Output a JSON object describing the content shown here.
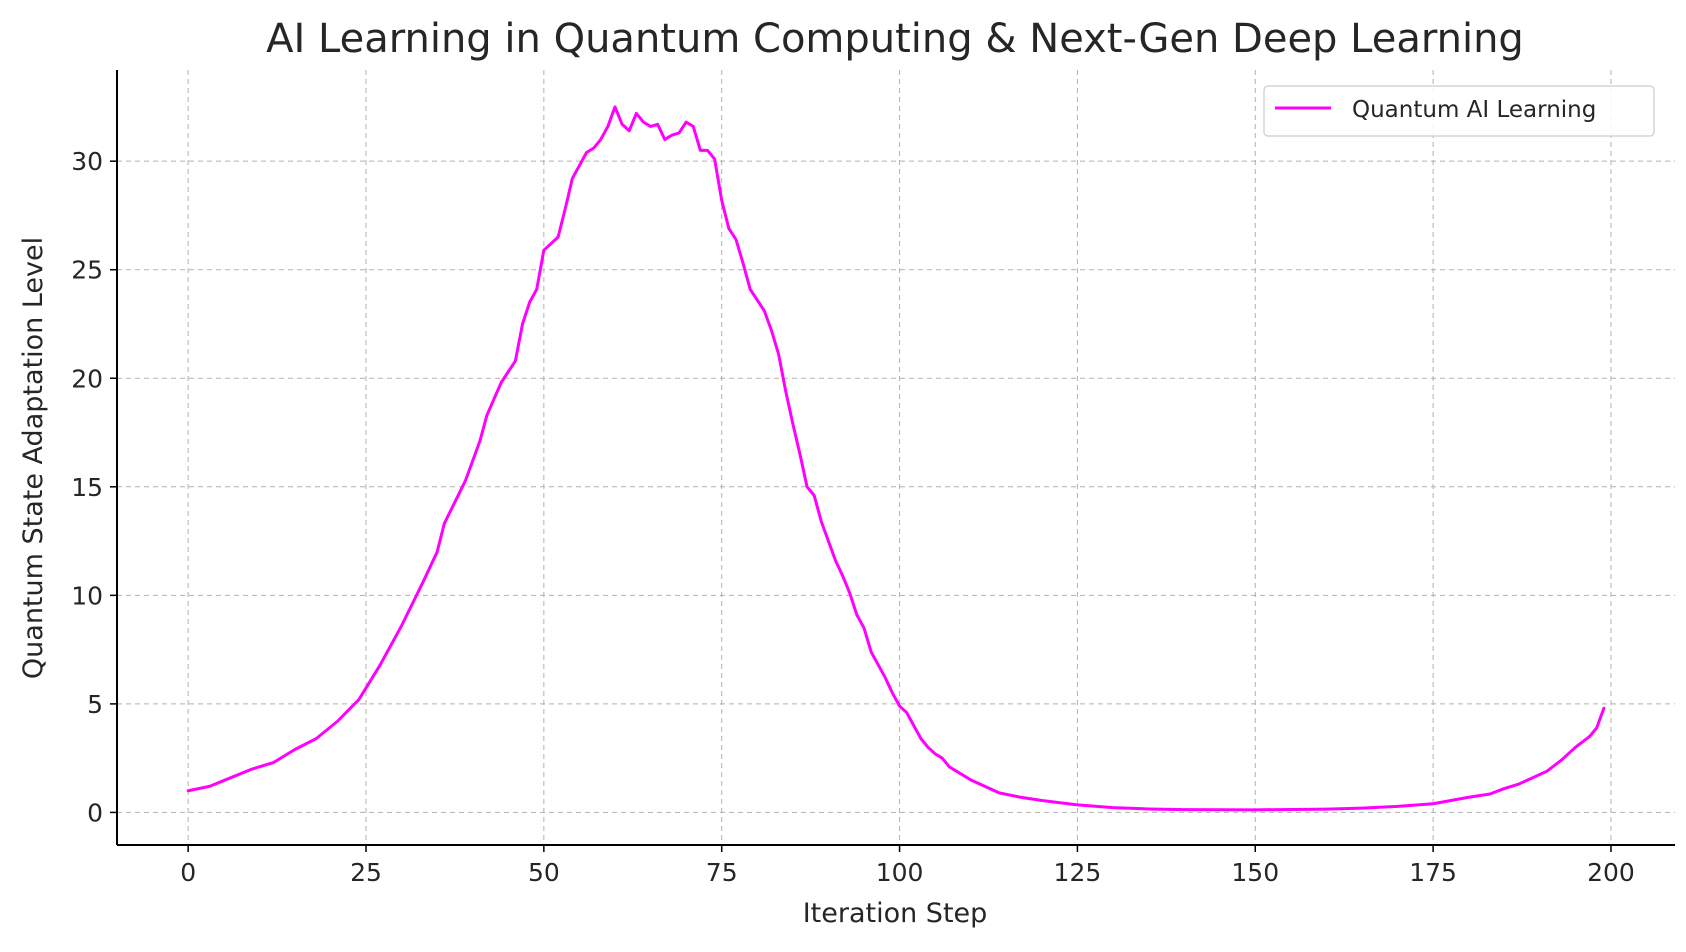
{
  "chart_data": {
    "type": "line",
    "title": "AI Learning in Quantum Computing & Next-Gen Deep Learning",
    "xlabel": "Iteration Step",
    "ylabel": "Quantum State Adaptation Level",
    "xlim": [
      -10,
      209
    ],
    "ylim": [
      -1.5,
      34.2
    ],
    "xticks": [
      0,
      25,
      50,
      75,
      100,
      125,
      150,
      175,
      200
    ],
    "yticks": [
      0,
      5,
      10,
      15,
      20,
      25,
      30
    ],
    "grid": true,
    "legend_position": "top-right",
    "series": [
      {
        "name": "Quantum AI Learning",
        "color": "#ff00ff",
        "points": [
          [
            0,
            1.0
          ],
          [
            3,
            1.2
          ],
          [
            6,
            1.6
          ],
          [
            9,
            2.0
          ],
          [
            12,
            2.3
          ],
          [
            15,
            2.9
          ],
          [
            18,
            3.4
          ],
          [
            21,
            4.2
          ],
          [
            24,
            5.2
          ],
          [
            27,
            6.8
          ],
          [
            30,
            8.6
          ],
          [
            33,
            10.6
          ],
          [
            35,
            12.0
          ],
          [
            36,
            13.3
          ],
          [
            39,
            15.3
          ],
          [
            41,
            17.1
          ],
          [
            42,
            18.3
          ],
          [
            44,
            19.8
          ],
          [
            46,
            20.8
          ],
          [
            47,
            22.5
          ],
          [
            48,
            23.5
          ],
          [
            49,
            24.1
          ],
          [
            50,
            25.9
          ],
          [
            52,
            26.5
          ],
          [
            53,
            27.8
          ],
          [
            54,
            29.2
          ],
          [
            56,
            30.4
          ],
          [
            57,
            30.6
          ],
          [
            58,
            31.0
          ],
          [
            59,
            31.6
          ],
          [
            60,
            32.5
          ],
          [
            61,
            31.7
          ],
          [
            62,
            31.4
          ],
          [
            63,
            32.2
          ],
          [
            64,
            31.8
          ],
          [
            65,
            31.6
          ],
          [
            66,
            31.7
          ],
          [
            67,
            31.0
          ],
          [
            68,
            31.2
          ],
          [
            69,
            31.3
          ],
          [
            70,
            31.8
          ],
          [
            71,
            31.6
          ],
          [
            72,
            30.5
          ],
          [
            73,
            30.5
          ],
          [
            74,
            30.1
          ],
          [
            75,
            28.2
          ],
          [
            76,
            26.9
          ],
          [
            77,
            26.4
          ],
          [
            78,
            25.3
          ],
          [
            79,
            24.1
          ],
          [
            80,
            23.6
          ],
          [
            81,
            23.1
          ],
          [
            82,
            22.2
          ],
          [
            83,
            21.1
          ],
          [
            84,
            19.4
          ],
          [
            85,
            17.9
          ],
          [
            86,
            16.5
          ],
          [
            87,
            15.0
          ],
          [
            88,
            14.6
          ],
          [
            89,
            13.4
          ],
          [
            90,
            12.5
          ],
          [
            91,
            11.6
          ],
          [
            92,
            10.9
          ],
          [
            93,
            10.1
          ],
          [
            94,
            9.1
          ],
          [
            95,
            8.5
          ],
          [
            96,
            7.4
          ],
          [
            97,
            6.8
          ],
          [
            98,
            6.2
          ],
          [
            99,
            5.5
          ],
          [
            100,
            4.9
          ],
          [
            101,
            4.6
          ],
          [
            102,
            4.0
          ],
          [
            103,
            3.4
          ],
          [
            104,
            3.0
          ],
          [
            105,
            2.7
          ],
          [
            106,
            2.5
          ],
          [
            107,
            2.1
          ],
          [
            108,
            1.9
          ],
          [
            110,
            1.5
          ],
          [
            112,
            1.2
          ],
          [
            114,
            0.9
          ],
          [
            117,
            0.7
          ],
          [
            120,
            0.55
          ],
          [
            125,
            0.35
          ],
          [
            130,
            0.22
          ],
          [
            135,
            0.16
          ],
          [
            140,
            0.13
          ],
          [
            150,
            0.12
          ],
          [
            160,
            0.15
          ],
          [
            165,
            0.2
          ],
          [
            170,
            0.28
          ],
          [
            175,
            0.4
          ],
          [
            180,
            0.7
          ],
          [
            183,
            0.85
          ],
          [
            185,
            1.1
          ],
          [
            187,
            1.3
          ],
          [
            189,
            1.6
          ],
          [
            191,
            1.9
          ],
          [
            193,
            2.4
          ],
          [
            195,
            3.0
          ],
          [
            197,
            3.5
          ],
          [
            198,
            3.9
          ],
          [
            199,
            4.8
          ]
        ]
      }
    ]
  }
}
